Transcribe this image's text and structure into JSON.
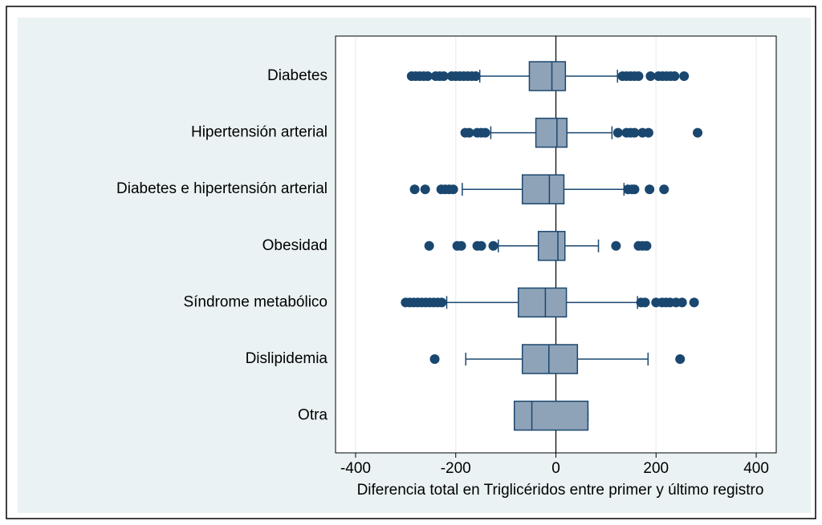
{
  "chart_data": {
    "type": "boxplot",
    "orientation": "horizontal",
    "x_label": "Diferencia total en Triglicéridos entre primer y último registro",
    "categories": [
      "Diabetes",
      "Hipertensión arterial",
      "Diabetes e hipertensión arterial",
      "Obesidad",
      "Síndrome metabólico",
      "Dislipidemia",
      "Otra"
    ],
    "boxes": [
      {
        "q1": -53,
        "median": -8,
        "q3": 19,
        "whisker_low": -152,
        "whisker_high": 123,
        "outliers": [
          -288,
          -280,
          -272,
          -264,
          -256,
          -240,
          -232,
          -224,
          -208,
          -200,
          -192,
          -184,
          -176,
          -168,
          -160,
          133,
          141,
          149,
          157,
          165,
          189,
          205,
          213,
          221,
          229,
          237,
          256
        ]
      },
      {
        "q1": -40,
        "median": 2,
        "q3": 22,
        "whisker_low": -130,
        "whisker_high": 112,
        "outliers": [
          -181,
          -173,
          -157,
          -149,
          -141,
          124,
          141,
          149,
          157,
          173,
          185,
          283
        ]
      },
      {
        "q1": -67,
        "median": -13,
        "q3": 16,
        "whisker_low": -187,
        "whisker_high": 136,
        "outliers": [
          -282,
          -261,
          -229,
          -221,
          -213,
          -205,
          144,
          152,
          157,
          187,
          216
        ]
      },
      {
        "q1": -35,
        "median": 4,
        "q3": 18,
        "whisker_low": -115,
        "whisker_high": 85,
        "outliers": [
          -253,
          -197,
          -189,
          -157,
          -149,
          -125,
          120,
          165,
          173,
          181
        ]
      },
      {
        "q1": -75,
        "median": -21,
        "q3": 21,
        "whisker_low": -218,
        "whisker_high": 163,
        "outliers": [
          -300,
          -292,
          -284,
          -276,
          -268,
          -260,
          -252,
          -244,
          -236,
          -228,
          170,
          178,
          200,
          212,
          220,
          228,
          240,
          252,
          276
        ]
      },
      {
        "q1": -67,
        "median": -14,
        "q3": 43,
        "whisker_low": -180,
        "whisker_high": 184,
        "outliers": [
          -242,
          248
        ]
      },
      {
        "q1": -83,
        "median": -48,
        "q3": 64,
        "whisker_low": -83,
        "whisker_high": 64,
        "outliers": []
      }
    ],
    "xlim": [
      -440,
      440
    ],
    "xticks": [
      -400,
      -200,
      0,
      200,
      400
    ],
    "reference_line": 0,
    "grid": true,
    "box_color": "#8fa3b8",
    "line_color": "#1a476f"
  }
}
